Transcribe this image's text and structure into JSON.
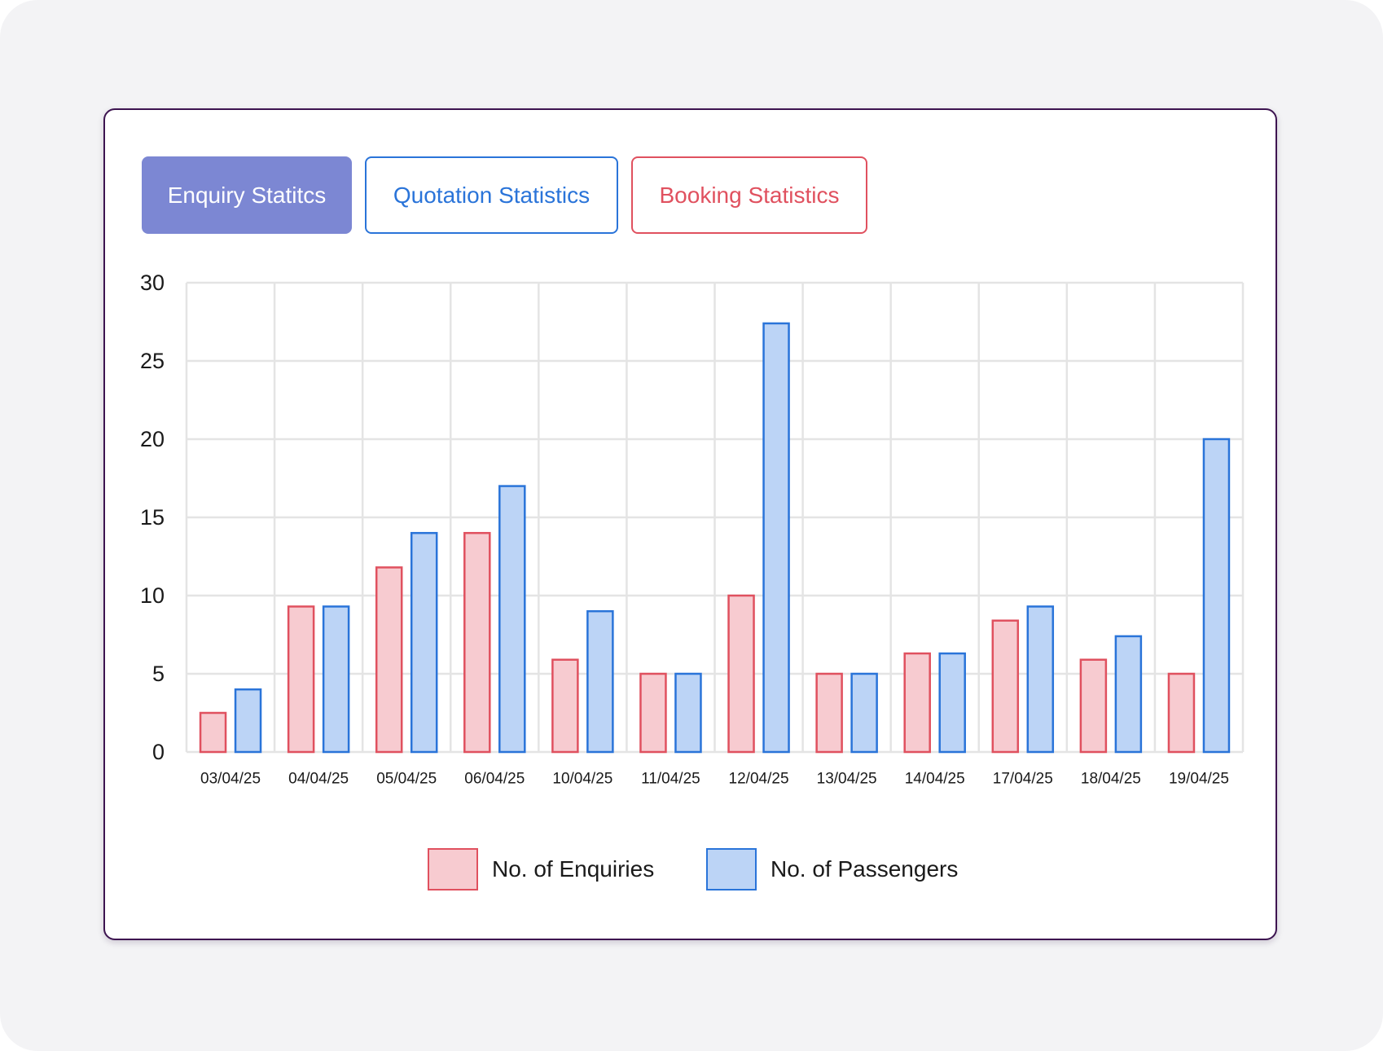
{
  "tabs": [
    {
      "label": "Enquiry Statitcs",
      "active": true,
      "color": "#7c87d3"
    },
    {
      "label": "Quotation Statistics",
      "active": false,
      "color": "#2a74d9"
    },
    {
      "label": "Booking Statistics",
      "active": false,
      "color": "#e0515f"
    }
  ],
  "legend": {
    "enquiries": "No. of Enquiries",
    "passengers": "No. of Passengers"
  },
  "colors": {
    "card_border": "#3d1450",
    "enquiries_fill": "#f7cbd0",
    "enquiries_stroke": "#e0515f",
    "passengers_fill": "#bcd4f6",
    "passengers_stroke": "#2a74d9",
    "grid": "#e4e4e4"
  },
  "chart_data": {
    "type": "bar",
    "categories": [
      "03/04/25",
      "04/04/25",
      "05/04/25",
      "06/04/25",
      "10/04/25",
      "11/04/25",
      "12/04/25",
      "13/04/25",
      "14/04/25",
      "17/04/25",
      "18/04/25",
      "19/04/25"
    ],
    "series": [
      {
        "name": "No. of Enquiries",
        "values": [
          2.5,
          9.3,
          11.8,
          14,
          5.9,
          5,
          10,
          5,
          6.3,
          8.4,
          5.9,
          5
        ]
      },
      {
        "name": "No. of Passengers",
        "values": [
          4,
          9.3,
          14,
          17,
          9,
          5,
          27.4,
          5,
          6.3,
          9.3,
          7.4,
          20
        ]
      }
    ],
    "title": "",
    "xlabel": "",
    "ylabel": "",
    "ylim": [
      0,
      30
    ],
    "yticks": [
      0,
      5,
      10,
      15,
      20,
      25,
      30
    ],
    "grid": true,
    "legend_position": "bottom-center"
  }
}
